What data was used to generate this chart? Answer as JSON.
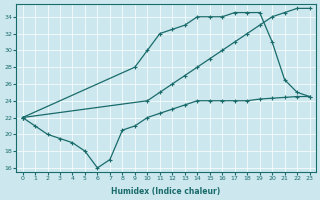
{
  "xlabel": "Humidex (Indice chaleur)",
  "xlim": [
    -0.5,
    23.5
  ],
  "ylim": [
    15.5,
    35.5
  ],
  "yticks": [
    16,
    18,
    20,
    22,
    24,
    26,
    28,
    30,
    32,
    34
  ],
  "xticks": [
    0,
    1,
    2,
    3,
    4,
    5,
    6,
    7,
    8,
    9,
    10,
    11,
    12,
    13,
    14,
    15,
    16,
    17,
    18,
    19,
    20,
    21,
    22,
    23
  ],
  "bg_color": "#cce8ee",
  "line_color": "#1a6b6b",
  "grid_color": "#ffffff",
  "line1_x": [
    0,
    1,
    2,
    3,
    4,
    5,
    6,
    7,
    8,
    9,
    10,
    11,
    12,
    13,
    14,
    15,
    16,
    17,
    18,
    19,
    20,
    21,
    22,
    23
  ],
  "line1_y": [
    22,
    21,
    20,
    19.5,
    19,
    18,
    16,
    17,
    20.5,
    21,
    22,
    22.5,
    23,
    23.5,
    24,
    24,
    24,
    24,
    24,
    24.2,
    24.3,
    24.4,
    24.5,
    24.5
  ],
  "line2_x": [
    0,
    9,
    10,
    11,
    12,
    13,
    14,
    15,
    16,
    17,
    18,
    19,
    20,
    21,
    22,
    23
  ],
  "line2_y": [
    22,
    28,
    30,
    32,
    32.5,
    33,
    34,
    34,
    34,
    34.5,
    34.5,
    34.5,
    31,
    26.5,
    25,
    24.5
  ],
  "line3_x": [
    0,
    10,
    11,
    12,
    13,
    14,
    15,
    16,
    17,
    18,
    19,
    20,
    21,
    22,
    23
  ],
  "line3_y": [
    22,
    24,
    25,
    26,
    27,
    28,
    29,
    30,
    31,
    32,
    33,
    34,
    34.5,
    35,
    35
  ]
}
